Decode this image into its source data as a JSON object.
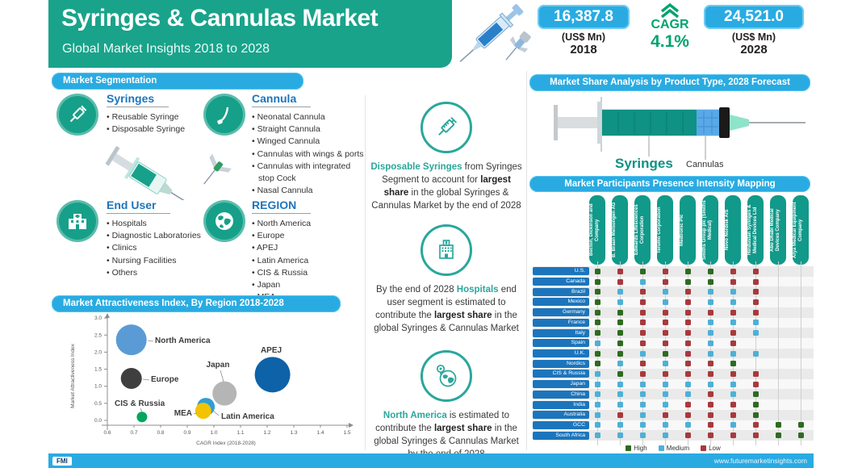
{
  "header": {
    "title": "Syringes & Cannulas Market",
    "subtitle": "Global Market Insights 2018 to 2028"
  },
  "stats": {
    "start": {
      "value": "16,387.8",
      "unit": "(US$ Mn)",
      "year": "2018"
    },
    "cagr": {
      "label": "CAGR",
      "value": "4.1%"
    },
    "end": {
      "value": "24,521.0",
      "unit": "(US$ Mn)",
      "year": "2028"
    }
  },
  "segmentation": {
    "banner": "Market Segmentation",
    "groups": [
      {
        "title": "Syringes",
        "items": [
          "Reusable Syringe",
          "Disposable Syringe"
        ]
      },
      {
        "title": "Cannula",
        "items": [
          "Neonatal Cannula",
          "Straight Cannula",
          "Winged Cannula",
          "Cannulas with wings & ports",
          "Cannulas with integrated stop Cock",
          "Nasal Cannula"
        ]
      },
      {
        "title": "End User",
        "items": [
          "Hospitals",
          "Diagnostic Laboratories",
          "Clinics",
          "Nursing Facilities",
          "Others"
        ]
      },
      {
        "title": "REGION",
        "items": [
          "North America",
          "Europe",
          "APEJ",
          "Latin America",
          "CIS & Russia",
          "Japan",
          "MEA"
        ]
      }
    ]
  },
  "insights": [
    {
      "lead": "Disposable Syringes",
      "t1": " from Syringes Segment to account for ",
      "strong": "largest share",
      "t2": " in the global Syringes & Cannulas Market by the end of 2028"
    },
    {
      "t0": "By the end of 2028 ",
      "lead": "Hospitals",
      "t1": " end user segment is estimated to contribute the ",
      "strong": "largest share",
      "t2": " in the global Syringes & Cannulas Market"
    },
    {
      "lead": "North America",
      "t1": " is estimated to contribute the ",
      "strong": "largest share",
      "t2": " in the global Syringes & Cannulas Market by the end of 2028"
    }
  ],
  "share": {
    "banner": "Market Share Analysis by Product Type, 2028 Forecast",
    "labels": [
      "Syringes",
      "Cannulas"
    ]
  },
  "chart_data": [
    {
      "type": "scatter",
      "title": "Market Attractiveness Index, By Region 2018-2028",
      "xlabel": "CAGR Index (2018-2028)",
      "ylabel": "Market Attractiveness Index",
      "xlim": [
        0.6,
        1.5
      ],
      "ylim": [
        0.0,
        3.0
      ],
      "xticks": [
        0.6,
        0.7,
        0.8,
        0.9,
        1.0,
        1.1,
        1.2,
        1.3,
        1.4,
        1.5
      ],
      "yticks": [
        0.0,
        0.5,
        1.0,
        1.5,
        2.0,
        2.5,
        3.0
      ],
      "grid": false,
      "points": [
        {
          "label": "North America",
          "x": 0.69,
          "y": 2.36,
          "r": 19,
          "color": "#5b9bd5"
        },
        {
          "label": "Europe",
          "x": 0.69,
          "y": 1.23,
          "r": 13,
          "color": "#3f3f3f"
        },
        {
          "label": "CIS & Russia",
          "x": 0.73,
          "y": 0.1,
          "r": 6.5,
          "color": "#00a65e"
        },
        {
          "label": "MEA",
          "x": 0.96,
          "y": 0.28,
          "r": 10,
          "color": "#f2c300"
        },
        {
          "label": "Latin America",
          "x": 0.97,
          "y": 0.4,
          "r": 11,
          "color": "#2e9fd6"
        },
        {
          "label": "Japan",
          "x": 1.04,
          "y": 0.79,
          "r": 15,
          "color": "#b5b5b5"
        },
        {
          "label": "APEJ",
          "x": 1.22,
          "y": 1.34,
          "r": 22,
          "color": "#0d62a8"
        }
      ]
    },
    {
      "type": "heatmap",
      "title": "Market Participants Presence Intensity Mapping",
      "columns": [
        "Becton, Dickinson and Company",
        "B. Braun Melsungen AG",
        "Edwards Lifesciences Corporation",
        "Terumo Corporation",
        "Medtronic Plc",
        "Smiths Group plc (Smiths Medical)",
        "Novo Nordisk A/S",
        "Hindustan Syringes & Medical Devices Ltd",
        "Abu Dhabi Medical Devices Company",
        "Arya Medical Equipment Company"
      ],
      "rows": [
        "U.S.",
        "Canada",
        "Brazil",
        "Mexico",
        "Germany",
        "France",
        "Italy",
        "Spain",
        "U.K.",
        "Nordics",
        "CIS & Russia",
        "Japan",
        "China",
        "India",
        "Australia",
        "GCC",
        "South Africa"
      ],
      "values": [
        [
          "H",
          "L",
          "H",
          "L",
          "H",
          "H",
          "L",
          "L",
          "",
          ""
        ],
        [
          "H",
          "L",
          "M",
          "L",
          "H",
          "H",
          "L",
          "L",
          "",
          ""
        ],
        [
          "H",
          "M",
          "L",
          "M",
          "L",
          "M",
          "M",
          "L",
          "",
          ""
        ],
        [
          "H",
          "M",
          "L",
          "M",
          "L",
          "M",
          "M",
          "L",
          "",
          ""
        ],
        [
          "H",
          "H",
          "L",
          "L",
          "L",
          "L",
          "L",
          "L",
          "",
          ""
        ],
        [
          "H",
          "H",
          "L",
          "L",
          "L",
          "M",
          "M",
          "M",
          "",
          ""
        ],
        [
          "H",
          "H",
          "L",
          "L",
          "L",
          "M",
          "L",
          "M",
          "",
          ""
        ],
        [
          "M",
          "H",
          "L",
          "L",
          "L",
          "M",
          "L",
          "",
          "",
          ""
        ],
        [
          "H",
          "H",
          "M",
          "H",
          "L",
          "M",
          "M",
          "M",
          "",
          ""
        ],
        [
          "H",
          "M",
          "L",
          "M",
          "L",
          "L",
          "H",
          "",
          "",
          ""
        ],
        [
          "M",
          "H",
          "L",
          "L",
          "L",
          "L",
          "L",
          "L",
          "",
          ""
        ],
        [
          "M",
          "M",
          "M",
          "M",
          "M",
          "M",
          "M",
          "L",
          "",
          ""
        ],
        [
          "M",
          "M",
          "M",
          "M",
          "M",
          "L",
          "M",
          "H",
          "",
          ""
        ],
        [
          "M",
          "M",
          "M",
          "M",
          "L",
          "L",
          "L",
          "H",
          "",
          ""
        ],
        [
          "M",
          "L",
          "M",
          "L",
          "L",
          "L",
          "L",
          "H",
          "",
          ""
        ],
        [
          "M",
          "M",
          "M",
          "M",
          "M",
          "L",
          "M",
          "L",
          "H",
          "H"
        ],
        [
          "M",
          "M",
          "M",
          "M",
          "L",
          "L",
          "L",
          "L",
          "H",
          "H"
        ]
      ],
      "legend": [
        {
          "label": "High",
          "color": "#2e6b20"
        },
        {
          "label": "Medium",
          "color": "#4eb0d6"
        },
        {
          "label": "Low",
          "color": "#a8393c"
        }
      ]
    }
  ],
  "footer": {
    "logo": "FMI",
    "website": "www.futuremarketinsights.com"
  },
  "colors": {
    "teal": "#19a38b",
    "banner_blue": "#29abe2",
    "heading_blue": "#1c75bc",
    "cagr_green": "#00a46c",
    "company_pill": "#11998a"
  }
}
